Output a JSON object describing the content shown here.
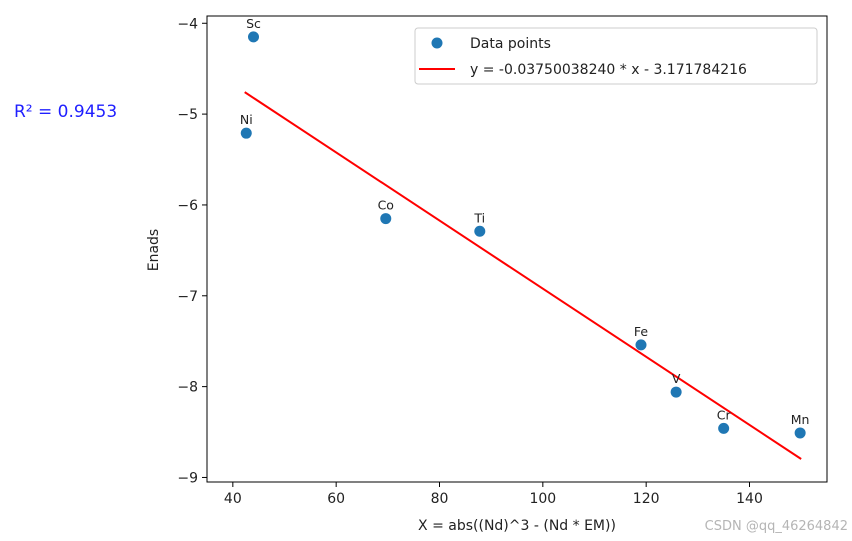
{
  "chart_data": {
    "type": "scatter",
    "xlabel": "X = abs((Nd)^3 - (Nd * EM))",
    "ylabel": "Enads",
    "xlim": [
      35,
      155
    ],
    "ylim": [
      -9.05,
      -3.92
    ],
    "xticks": [
      40,
      60,
      80,
      100,
      120,
      140
    ],
    "xtick_labels": [
      "40",
      "60",
      "80",
      "100",
      "120",
      "140"
    ],
    "yticks": [
      -9,
      -8,
      -7,
      -6,
      -5,
      -4
    ],
    "ytick_labels": [
      "−9",
      "−8",
      "−7",
      "−6",
      "−5",
      "−4"
    ],
    "points": [
      {
        "label": "Sc",
        "x": 44.0,
        "y": -4.15
      },
      {
        "label": "Ni",
        "x": 42.6,
        "y": -5.21
      },
      {
        "label": "Co",
        "x": 69.6,
        "y": -6.15
      },
      {
        "label": "Ti",
        "x": 87.8,
        "y": -6.29
      },
      {
        "label": "Fe",
        "x": 119.0,
        "y": -7.54
      },
      {
        "label": "V",
        "x": 125.8,
        "y": -8.06
      },
      {
        "label": "Cr",
        "x": 135.0,
        "y": -8.46
      },
      {
        "label": "Mn",
        "x": 149.8,
        "y": -8.51
      }
    ],
    "fit": {
      "slope": -0.0375003824,
      "intercept": -3.171784216,
      "x_range": [
        42.3,
        150
      ]
    },
    "series": [
      {
        "name": "Data points",
        "kind": "scatter",
        "color": "#1f77b4"
      },
      {
        "name": "y = -0.03750038240 * x - 3.171784216",
        "kind": "line",
        "color": "#ff0000"
      }
    ],
    "legend_position": "top-right",
    "grid": false,
    "annotation": "R² = 0.9453",
    "annotation_color": "#1f1fff"
  },
  "watermark": "CSDN @qq_46264842"
}
